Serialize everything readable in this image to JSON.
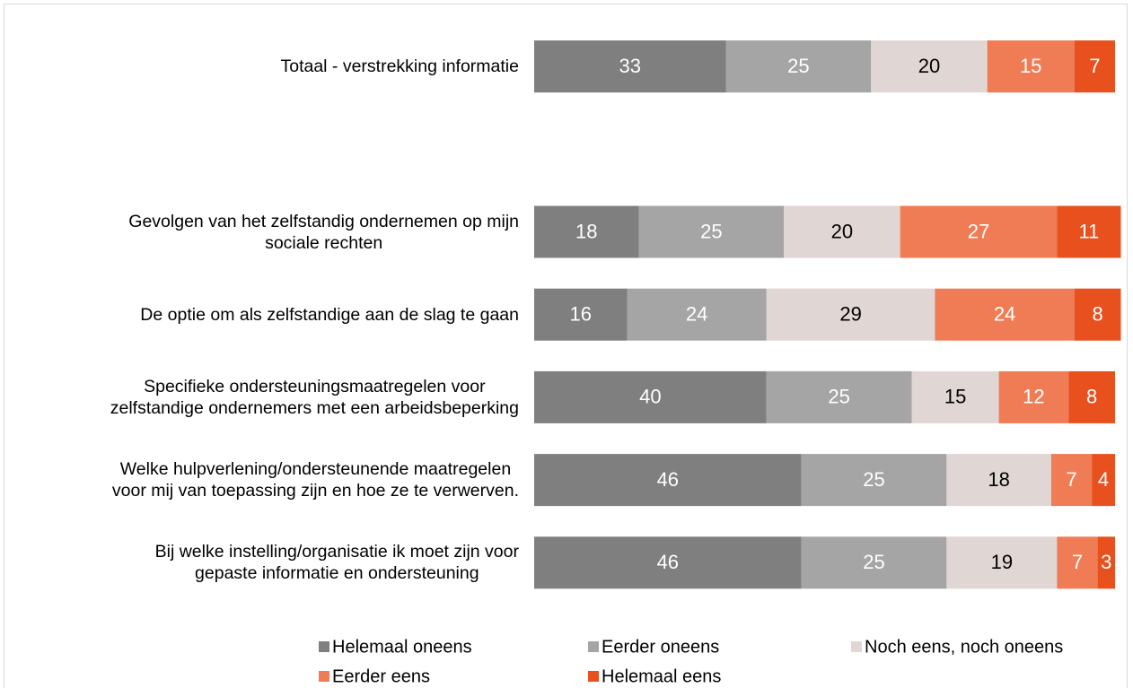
{
  "chart_data": {
    "type": "stacked_barh",
    "categories": [
      "Totaal - verstrekking informatie",
      null,
      "Gevolgen van het zelfstandig ondernemen op mijn\nsociale rechten",
      "De optie om als zelfstandige aan de slag te gaan",
      "Specifieke ondersteuningsmaatregelen voor\nzelfstandige ondernemers met een arbeidsbeperking",
      "Welke hulpverlening/ondersteunende maatregelen\nvoor mij van toepassing zijn en hoe ze te verwerven.",
      "Bij welke instelling/organisatie ik moet zijn voor\ngepaste informatie en ondersteuning"
    ],
    "series": [
      {
        "name": "Helemaal oneens",
        "color": "#7f7f7f",
        "values": [
          33,
          null,
          18,
          16,
          40,
          46,
          46
        ]
      },
      {
        "name": "Eerder oneens",
        "color": "#a5a5a5",
        "values": [
          25,
          null,
          25,
          24,
          25,
          25,
          25
        ]
      },
      {
        "name": "Noch eens, noch oneens",
        "color": "#e0d6d4",
        "values": [
          20,
          null,
          20,
          29,
          15,
          18,
          19
        ]
      },
      {
        "name": "Eerder eens",
        "color": "#f07c55",
        "values": [
          15,
          null,
          27,
          24,
          12,
          7,
          7
        ]
      },
      {
        "name": "Helemaal eens",
        "color": "#e8501e",
        "values": [
          7,
          null,
          11,
          8,
          8,
          4,
          3
        ]
      }
    ],
    "xlim": [
      0,
      100
    ],
    "legend": "bottom"
  }
}
